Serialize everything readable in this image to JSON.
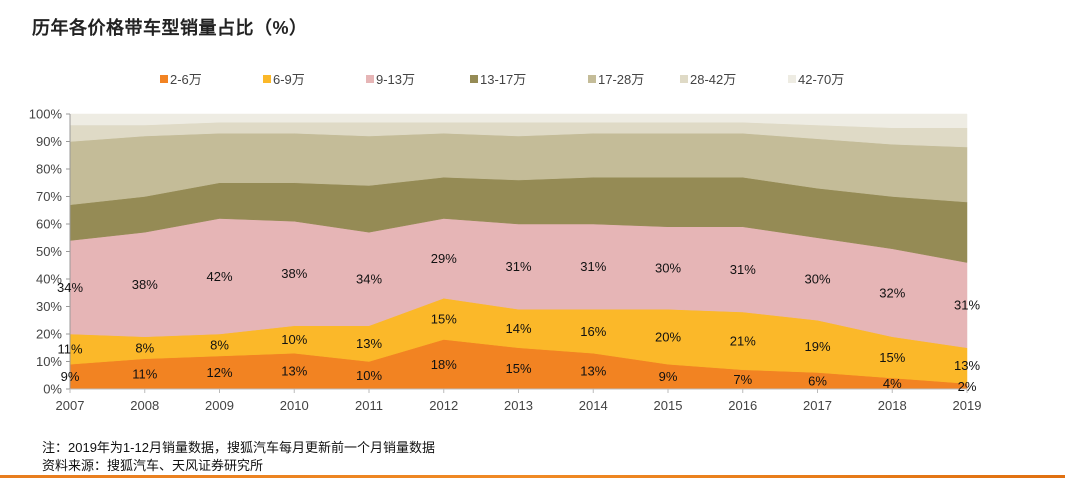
{
  "chart_data": {
    "type": "area",
    "stacked": "percent",
    "title": "历年各价格带车型销量占比（%）",
    "xlabel": "",
    "ylabel": "",
    "ylim": [
      0,
      100
    ],
    "yticks": [
      "0%",
      "10%",
      "20%",
      "30%",
      "40%",
      "50%",
      "60%",
      "70%",
      "80%",
      "90%",
      "100%"
    ],
    "categories": [
      "2007",
      "2008",
      "2009",
      "2010",
      "2011",
      "2012",
      "2013",
      "2014",
      "2015",
      "2016",
      "2017",
      "2018",
      "2019"
    ],
    "legend_position": "top",
    "grid": false,
    "series": [
      {
        "name": "2-6万",
        "color": "#F28322",
        "labeled": true,
        "values": [
          9,
          11,
          12,
          13,
          10,
          18,
          15,
          13,
          9,
          7,
          6,
          4,
          2
        ]
      },
      {
        "name": "6-9万",
        "color": "#FBB829",
        "labeled": true,
        "values": [
          11,
          8,
          8,
          10,
          13,
          15,
          14,
          16,
          20,
          21,
          19,
          15,
          13
        ]
      },
      {
        "name": "9-13万",
        "color": "#E6B5B6",
        "labeled": true,
        "values": [
          34,
          38,
          42,
          38,
          34,
          29,
          31,
          31,
          30,
          31,
          30,
          32,
          31
        ]
      },
      {
        "name": "13-17万",
        "color": "#958B55",
        "labeled": false,
        "values": [
          13,
          13,
          13,
          14,
          17,
          15,
          16,
          17,
          18,
          18,
          18,
          19,
          22
        ]
      },
      {
        "name": "17-28万",
        "color": "#C4BC98",
        "labeled": false,
        "values": [
          23,
          22,
          18,
          18,
          18,
          16,
          16,
          16,
          16,
          16,
          18,
          19,
          20
        ]
      },
      {
        "name": "28-42万",
        "color": "#DFDAC6",
        "labeled": false,
        "values": [
          6,
          4,
          4,
          4,
          5,
          4,
          5,
          4,
          4,
          4,
          5,
          6,
          7
        ]
      },
      {
        "name": "42-70万",
        "color": "#EEECE3",
        "labeled": false,
        "values": [
          4,
          4,
          3,
          3,
          3,
          3,
          3,
          3,
          3,
          3,
          4,
          5,
          5
        ]
      }
    ],
    "data_labels": {
      "2-6万": [
        "9%",
        "11%",
        "12%",
        "13%",
        "10%",
        "18%",
        "15%",
        "13%",
        "9%",
        "7%",
        "6%",
        "4%",
        "2%"
      ],
      "6-9万": [
        "11%",
        "8%",
        "8%",
        "10%",
        "13%",
        "15%",
        "14%",
        "16%",
        "20%",
        "21%",
        "19%",
        "15%",
        "13%"
      ],
      "9-13万": [
        "34%",
        "38%",
        "42%",
        "38%",
        "34%",
        "29%",
        "31%",
        "31%",
        "30%",
        "31%",
        "30%",
        "32%",
        "31%"
      ]
    }
  },
  "notes": {
    "note": "注：2019年为1-12月销量数据，搜狐汽车每月更新前一个月销量数据",
    "source": "资料来源：搜狐汽车、天风证券研究所"
  }
}
